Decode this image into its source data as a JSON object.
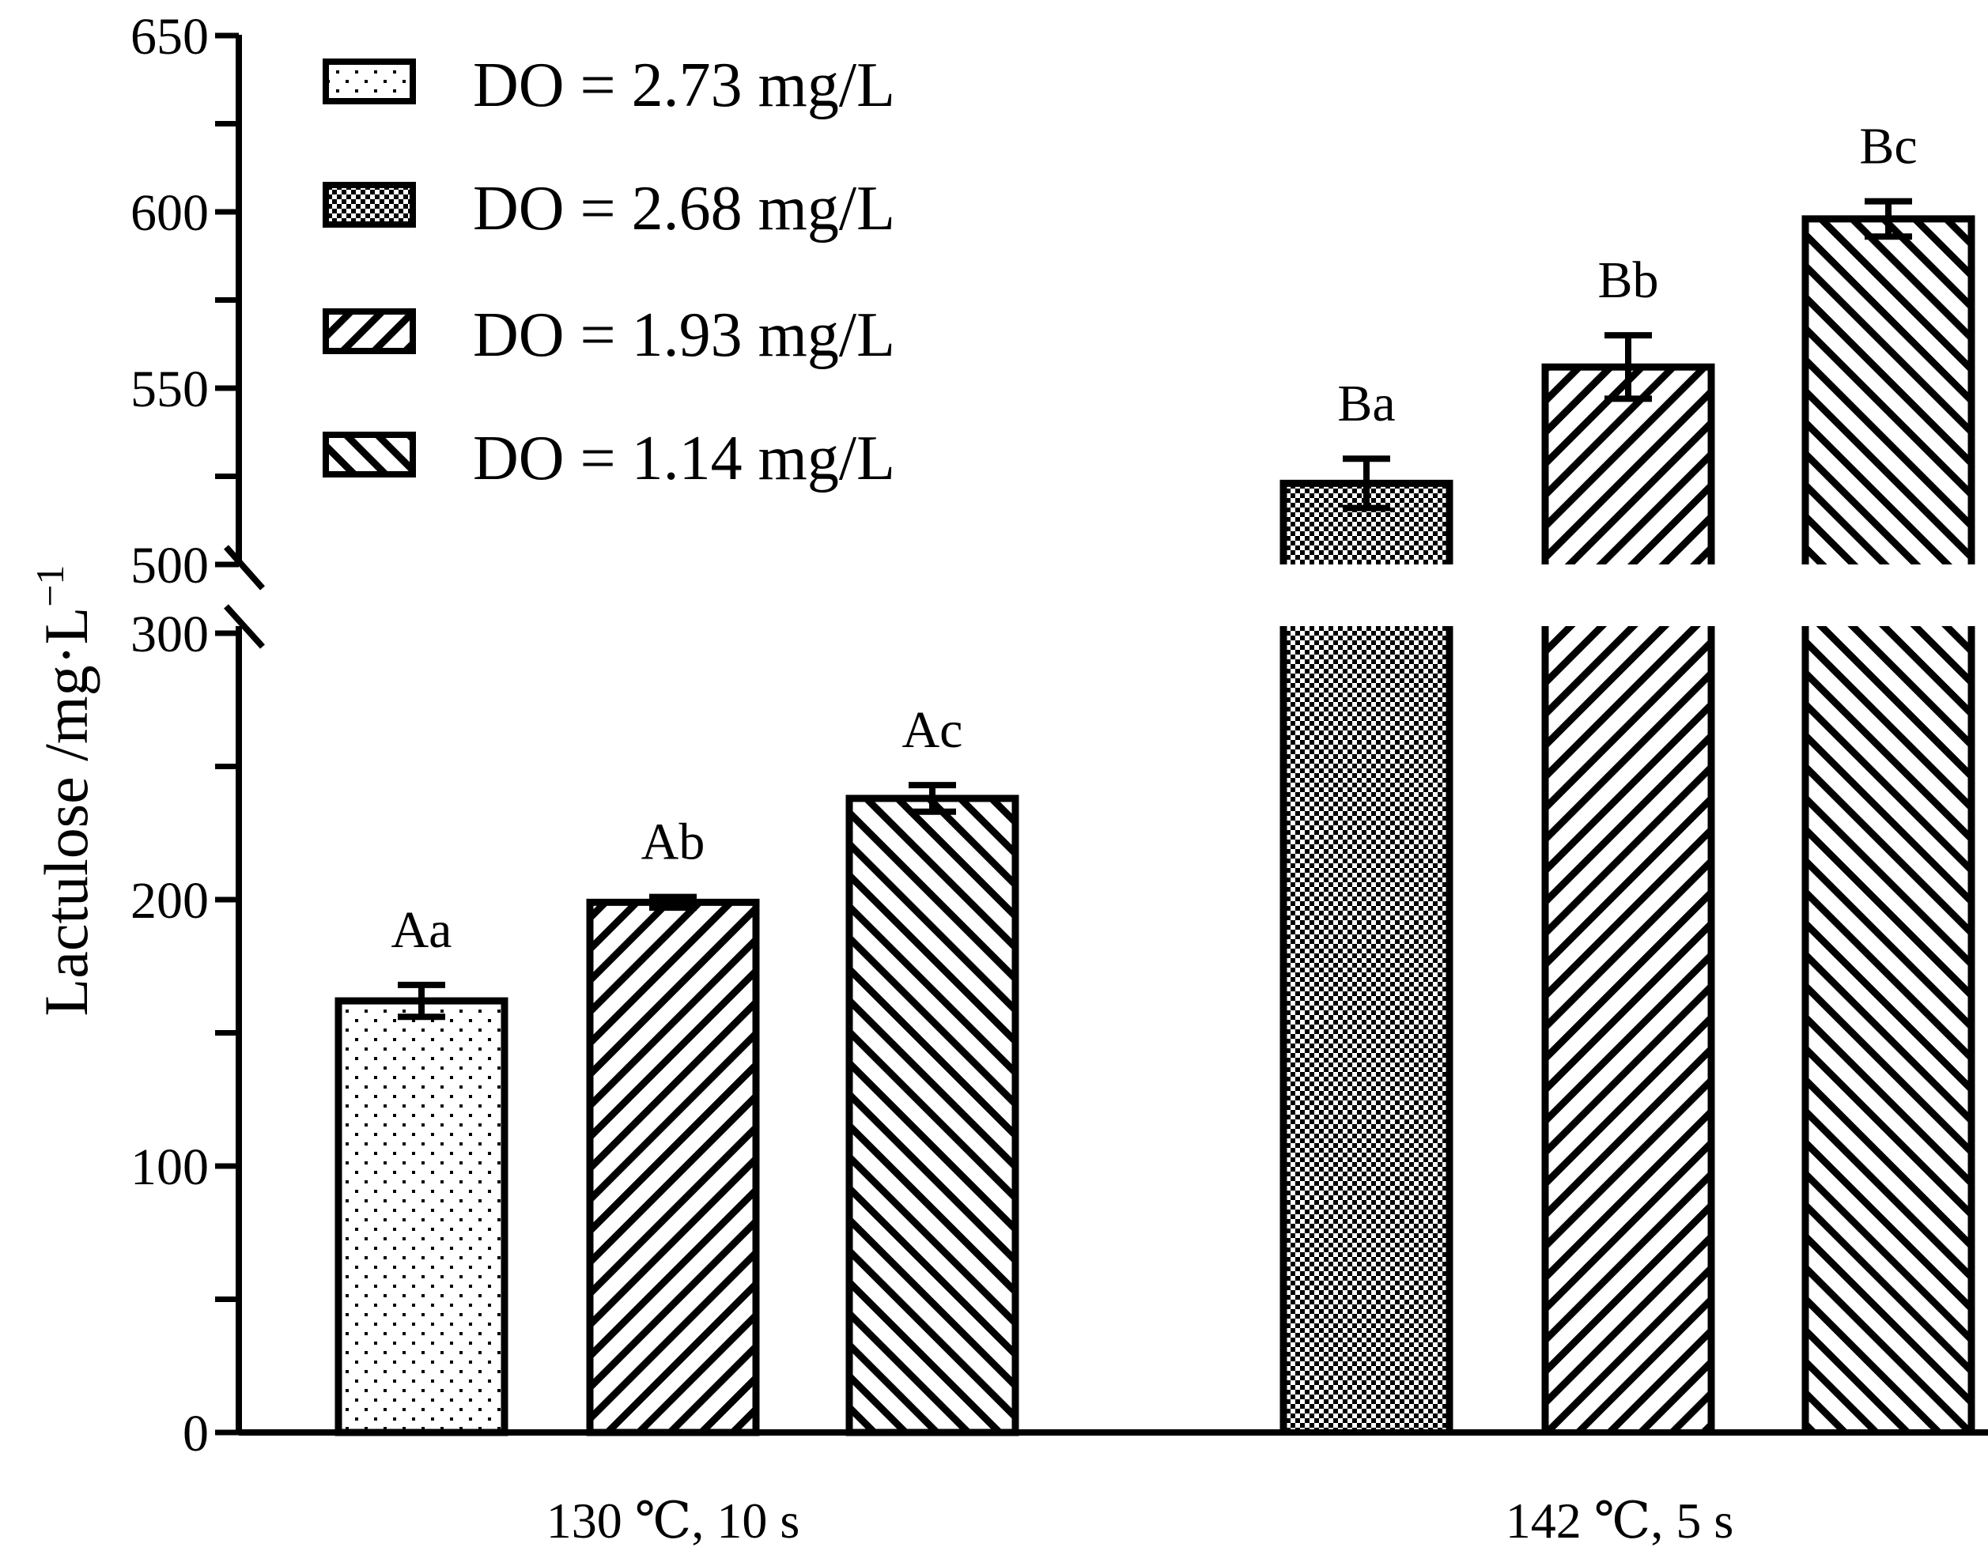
{
  "chart_data": {
    "type": "bar",
    "ylabel": "Lactulose /mg·L",
    "ylabel_exp": "−1",
    "categories": [
      "130 ℃, 10 s",
      "142 ℃, 5 s"
    ],
    "series": [
      {
        "name": "DO = 2.73 mg/L",
        "pattern": "dots",
        "values": [
          162,
          null
        ],
        "errors": [
          6,
          null
        ],
        "labels": [
          "Aa",
          null
        ]
      },
      {
        "name": "DO = 2.68 mg/L",
        "pattern": "checker",
        "values": [
          null,
          523
        ],
        "errors": [
          null,
          7
        ],
        "labels": [
          null,
          "Ba"
        ]
      },
      {
        "name": "DO = 1.93 mg/L",
        "pattern": "hatch-right",
        "values": [
          199,
          556
        ],
        "errors": [
          2,
          9
        ],
        "labels": [
          "Ab",
          "Bb"
        ]
      },
      {
        "name": "DO = 1.14 mg/L",
        "pattern": "hatch-left",
        "values": [
          238,
          598
        ],
        "errors": [
          5,
          5
        ],
        "labels": [
          "Ac",
          "Bc"
        ]
      }
    ],
    "ylim": [
      0,
      650
    ],
    "y_break": [
      300,
      500
    ],
    "yticks_lower": [
      0,
      100,
      200,
      300
    ],
    "yticks_upper": [
      500,
      550,
      600,
      650
    ],
    "legend_position": "top-left",
    "grid": false
  }
}
